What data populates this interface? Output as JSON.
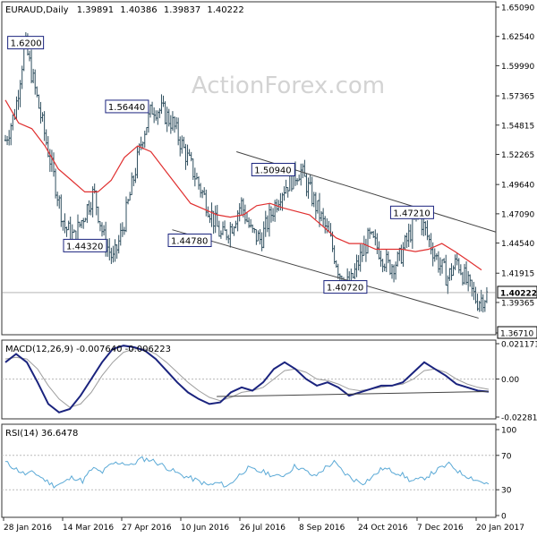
{
  "header": {
    "symbol": "EURAUD",
    "timeframe": "Daily",
    "open": "1.39891",
    "high": "1.40386",
    "low": "1.39837",
    "close": "1.40222"
  },
  "watermark": "ActionForex.com",
  "colors": {
    "price_bars": "#2f4f5f",
    "moving_average": "#e03030",
    "macd_line": "#1a237e",
    "signal_line": "#9e9e9e",
    "rsi_line": "#5aa9d6",
    "trendline": "#444444",
    "label_border": "#1a237e"
  },
  "chart_data": [
    {
      "type": "candlestick",
      "panel": "price",
      "x_tick_labels": [
        "28 Jan 2016",
        "14 Mar 2016",
        "27 Apr 2016",
        "10 Jun 2016",
        "26 Jul 2016",
        "8 Sep 2016",
        "24 Oct 2016",
        "7 Dec 2016",
        "20 Jan 2017"
      ],
      "y_tick_labels": [
        "1.65090",
        "1.62540",
        "1.59990",
        "1.57365",
        "1.54815",
        "1.52265",
        "1.49640",
        "1.47090",
        "1.44540",
        "1.41915",
        "1.39365",
        "1.36710"
      ],
      "ylim": [
        1.3671,
        1.6509
      ],
      "current_price_label": "1.40222",
      "bottom_price_label": "1.36710",
      "annotations": [
        {
          "text": "1.6200",
          "value": 1.62
        },
        {
          "text": "1.56440",
          "value": 1.5644
        },
        {
          "text": "1.44320",
          "value": 1.4432
        },
        {
          "text": "1.44780",
          "value": 1.4478
        },
        {
          "text": "1.50940",
          "value": 1.5094
        },
        {
          "text": "1.40720",
          "value": 1.4072
        },
        {
          "text": "1.47210",
          "value": 1.4721
        }
      ],
      "price_path": [
        1.535,
        1.56,
        1.62,
        1.58,
        1.54,
        1.5,
        1.46,
        1.45,
        1.47,
        1.49,
        1.45,
        1.43,
        1.46,
        1.5,
        1.54,
        1.564,
        1.56,
        1.55,
        1.53,
        1.51,
        1.49,
        1.47,
        1.45,
        1.46,
        1.48,
        1.455,
        1.448,
        1.47,
        1.49,
        1.5,
        1.5094,
        1.49,
        1.47,
        1.45,
        1.42,
        1.4072,
        1.43,
        1.45,
        1.44,
        1.425,
        1.43,
        1.45,
        1.4721,
        1.45,
        1.43,
        1.415,
        1.43,
        1.41,
        1.395,
        1.4
      ],
      "moving_average": [
        1.57,
        1.55,
        1.545,
        1.53,
        1.51,
        1.5,
        1.49,
        1.49,
        1.5,
        1.52,
        1.53,
        1.525,
        1.51,
        1.495,
        1.48,
        1.475,
        1.47,
        1.468,
        1.47,
        1.478,
        1.48,
        1.476,
        1.473,
        1.47,
        1.46,
        1.45,
        1.445,
        1.445,
        1.44,
        1.44,
        1.44,
        1.438,
        1.44,
        1.445,
        1.438,
        1.43,
        1.422
      ],
      "series": [
        {
          "name": "",
          "role": "50-day moving average"
        }
      ]
    },
    {
      "type": "line",
      "panel": "macd",
      "title": "MACD(12,26,9) -0.007640 -0.006223",
      "y_tick_labels": [
        "0.021171",
        "0.00",
        "-0.022814"
      ],
      "ylim": [
        -0.022814,
        0.021171
      ],
      "macd": [
        0.01,
        0.015,
        0.01,
        -0.002,
        -0.015,
        -0.02,
        -0.018,
        -0.01,
        0.0,
        0.01,
        0.018,
        0.02,
        0.019,
        0.017,
        0.012,
        0.005,
        -0.002,
        -0.008,
        -0.012,
        -0.015,
        -0.014,
        -0.008,
        -0.005,
        -0.007,
        -0.002,
        0.006,
        0.01,
        0.006,
        0.0,
        -0.004,
        -0.002,
        -0.005,
        -0.01,
        -0.008,
        -0.006,
        -0.004,
        -0.004,
        -0.002,
        0.004,
        0.01,
        0.006,
        0.002,
        -0.003,
        -0.005,
        -0.007,
        -0.0076
      ],
      "signal": [
        0.012,
        0.013,
        0.012,
        0.006,
        -0.004,
        -0.012,
        -0.017,
        -0.015,
        -0.008,
        0.002,
        0.01,
        0.016,
        0.018,
        0.018,
        0.015,
        0.01,
        0.004,
        -0.002,
        -0.007,
        -0.011,
        -0.013,
        -0.011,
        -0.008,
        -0.007,
        -0.005,
        0.0,
        0.005,
        0.006,
        0.004,
        0.0,
        -0.001,
        -0.003,
        -0.006,
        -0.007,
        -0.006,
        -0.005,
        -0.004,
        -0.003,
        0.0,
        0.005,
        0.006,
        0.004,
        0.0,
        -0.003,
        -0.005,
        -0.0062
      ]
    },
    {
      "type": "line",
      "panel": "rsi",
      "title": "RSI(14) 36.6478",
      "y_tick_labels": [
        "100",
        "70",
        "30",
        "0"
      ],
      "ylim": [
        0,
        100
      ],
      "rsi": [
        62,
        55,
        48,
        50,
        42,
        35,
        38,
        45,
        40,
        55,
        50,
        60,
        62,
        58,
        66,
        65,
        60,
        54,
        48,
        44,
        40,
        35,
        38,
        34,
        45,
        55,
        52,
        50,
        45,
        48,
        58,
        52,
        45,
        55,
        62,
        50,
        42,
        38,
        45,
        55,
        52,
        48,
        40,
        42,
        48,
        55,
        60,
        50,
        45,
        40,
        36.65
      ]
    }
  ]
}
